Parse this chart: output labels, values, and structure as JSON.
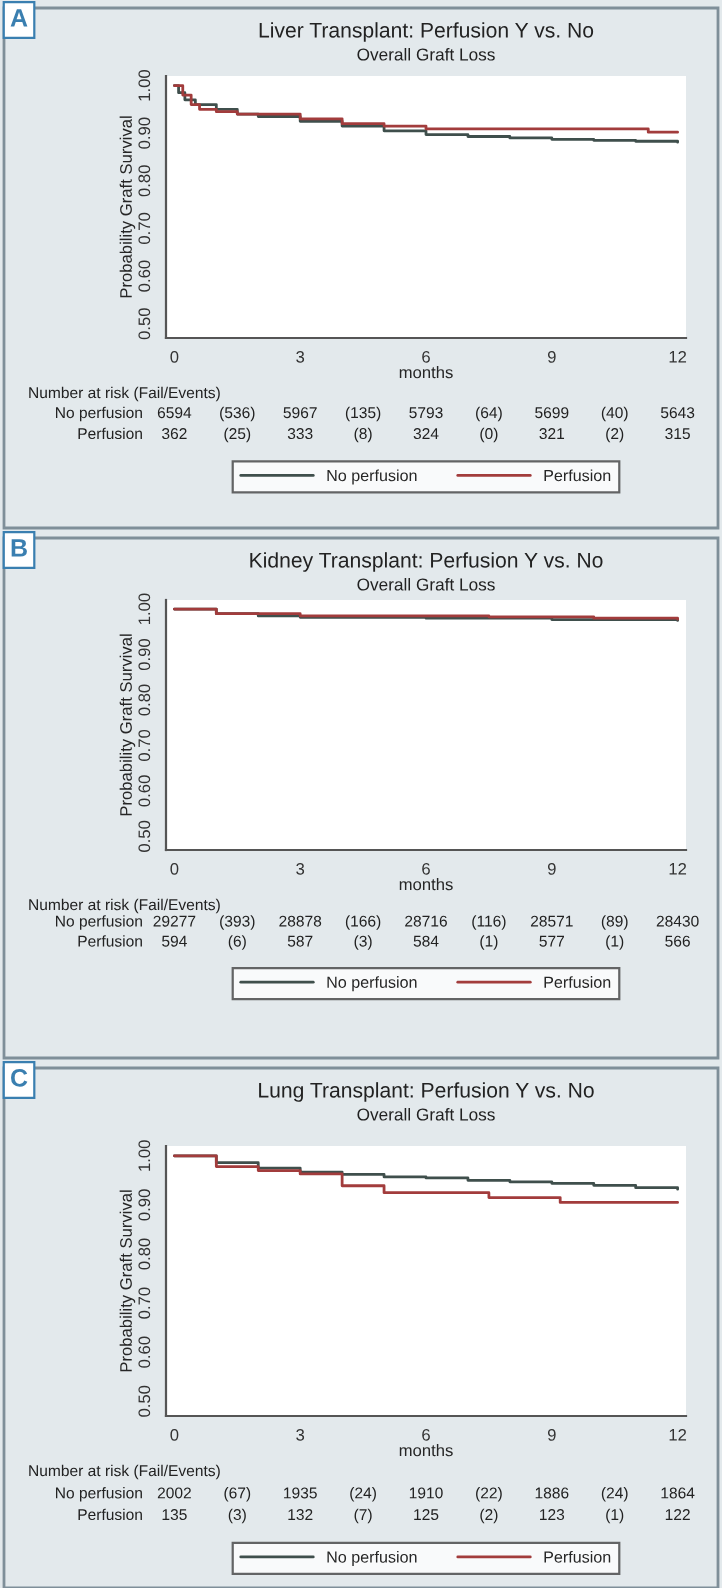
{
  "chart_data": [
    {
      "type": "step",
      "title": "Liver Transplant: Perfusion Y vs. No",
      "subtitle": "Overall Graft Loss",
      "xlabel": "months",
      "ylabel": "Probability Graft Survival",
      "xlim": [
        -0.2,
        12.2
      ],
      "ylim": [
        0.47,
        1.02
      ],
      "xticks": [
        0,
        3,
        6,
        9,
        12
      ],
      "yticks": [
        {
          "value": 0.5,
          "label": "0.50"
        },
        {
          "value": 0.6,
          "label": "0.60"
        },
        {
          "value": 0.7,
          "label": "0.70"
        },
        {
          "value": 0.8,
          "label": "0.80"
        },
        {
          "value": 0.9,
          "label": "0.90"
        },
        {
          "value": 1.0,
          "label": "1.00"
        }
      ],
      "legend": "bottom",
      "series": [
        {
          "name": "No perfusion",
          "color": "#3f4f4c",
          "x": [
            0,
            0.1,
            0.25,
            0.5,
            1,
            1.5,
            2,
            3,
            4,
            5,
            6,
            7,
            8,
            9,
            10,
            11,
            12
          ],
          "values": [
            1.0,
            0.985,
            0.97,
            0.96,
            0.95,
            0.94,
            0.935,
            0.925,
            0.915,
            0.905,
            0.897,
            0.893,
            0.89,
            0.887,
            0.885,
            0.883,
            0.881
          ]
        },
        {
          "name": "Perfusion",
          "color": "#a23c3c",
          "x": [
            0,
            0.2,
            0.4,
            0.6,
            1,
            1.5,
            3,
            4,
            5,
            6,
            7,
            11,
            11.3,
            12
          ],
          "values": [
            1.0,
            0.98,
            0.96,
            0.95,
            0.945,
            0.94,
            0.93,
            0.92,
            0.915,
            0.909,
            0.909,
            0.909,
            0.902,
            0.902
          ]
        }
      ],
      "annotations": [
        "A",
        "Number at risk (Fail/Events)",
        "No perfusion",
        "6594",
        "(536)",
        "5967",
        "(135)",
        "5793",
        "(64)",
        "5699",
        "(40)",
        "5643",
        "Perfusion",
        "362",
        "(25)",
        "333",
        "(8)",
        "324",
        "(0)",
        "321",
        "(2)",
        "315"
      ]
    },
    {
      "type": "step",
      "title": "Kidney Transplant: Perfusion Y vs. No",
      "subtitle": "Overall Graft Loss",
      "xlabel": "months",
      "ylabel": "Probability Graft Survival",
      "xlim": [
        -0.2,
        12.2
      ],
      "ylim": [
        0.47,
        1.02
      ],
      "xticks": [
        0,
        3,
        6,
        9,
        12
      ],
      "yticks": [
        {
          "value": 0.5,
          "label": "0.50"
        },
        {
          "value": 0.6,
          "label": "0.60"
        },
        {
          "value": 0.7,
          "label": "0.70"
        },
        {
          "value": 0.8,
          "label": "0.80"
        },
        {
          "value": 0.9,
          "label": "0.90"
        },
        {
          "value": 1.0,
          "label": "1.00"
        }
      ],
      "legend": "bottom",
      "series": [
        {
          "name": "No perfusion",
          "color": "#3f4f4c",
          "x": [
            0,
            1,
            2,
            3,
            6,
            9,
            12
          ],
          "values": [
            1.0,
            0.99,
            0.985,
            0.982,
            0.98,
            0.977,
            0.975
          ]
        },
        {
          "name": "Perfusion",
          "color": "#a23c3c",
          "x": [
            0,
            1,
            3,
            6,
            7.5,
            10,
            12
          ],
          "values": [
            1.0,
            0.99,
            0.985,
            0.985,
            0.983,
            0.98,
            0.978
          ]
        }
      ],
      "annotations": [
        "B",
        "Number at risk (Fail/Events)",
        "No perfusion",
        "29277",
        "(393)",
        "28878",
        "(166)",
        "28716",
        "(116)",
        "28571",
        "(89)",
        "28430",
        "Perfusion",
        "594",
        "(6)",
        "587",
        "(3)",
        "584",
        "(1)",
        "577",
        "(1)",
        "566"
      ]
    },
    {
      "type": "step",
      "title": "Lung Transplant: Perfusion Y vs. No",
      "subtitle": "Overall Graft Loss",
      "xlabel": "months",
      "ylabel": "Probability Graft Survival",
      "xlim": [
        -0.2,
        12.2
      ],
      "ylim": [
        0.47,
        1.02
      ],
      "xticks": [
        0,
        3,
        6,
        9,
        12
      ],
      "yticks": [
        {
          "value": 0.5,
          "label": "0.50"
        },
        {
          "value": 0.6,
          "label": "0.60"
        },
        {
          "value": 0.7,
          "label": "0.70"
        },
        {
          "value": 0.8,
          "label": "0.80"
        },
        {
          "value": 0.9,
          "label": "0.90"
        },
        {
          "value": 1.0,
          "label": "1.00"
        }
      ],
      "legend": "bottom",
      "series": [
        {
          "name": "No perfusion",
          "color": "#3f4f4c",
          "x": [
            0,
            1,
            2,
            3,
            4,
            5,
            6,
            7,
            8,
            9,
            10,
            11,
            12
          ],
          "values": [
            1.0,
            0.986,
            0.975,
            0.967,
            0.962,
            0.957,
            0.955,
            0.95,
            0.947,
            0.944,
            0.94,
            0.935,
            0.932
          ]
        },
        {
          "name": "Perfusion",
          "color": "#a23c3c",
          "x": [
            0,
            1,
            2,
            3,
            4,
            5,
            7.5,
            9.2,
            12
          ],
          "values": [
            1.0,
            0.978,
            0.97,
            0.963,
            0.939,
            0.925,
            0.915,
            0.905,
            0.905
          ]
        }
      ],
      "annotations": [
        "C",
        "Number at risk (Fail/Events)",
        "No perfusion",
        "2002",
        "(67)",
        "1935",
        "(24)",
        "1910",
        "(22)",
        "1886",
        "(24)",
        "1864",
        "Perfusion",
        "135",
        "(3)",
        "132",
        "(7)",
        "125",
        "(2)",
        "123",
        "(1)",
        "122"
      ]
    }
  ]
}
